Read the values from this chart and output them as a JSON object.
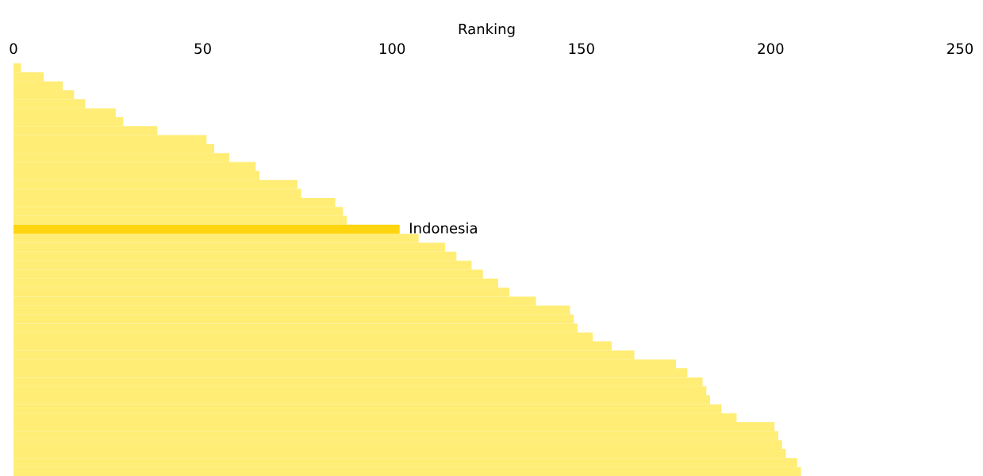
{
  "chart_data": {
    "type": "bar",
    "orientation": "horizontal",
    "xlabel": "Ranking",
    "categories": [
      null,
      null,
      null,
      null,
      null,
      null,
      null,
      null,
      null,
      null,
      null,
      null,
      null,
      null,
      null,
      null,
      null,
      null,
      "Indonesia",
      null,
      null,
      null,
      null,
      null,
      null,
      null,
      null,
      null,
      null,
      null,
      null,
      null,
      null,
      null,
      null,
      null,
      null,
      null,
      null,
      null,
      null,
      null,
      null,
      null,
      null,
      null
    ],
    "values": [
      2,
      8,
      13,
      16,
      19,
      27,
      29,
      38,
      51,
      53,
      57,
      64,
      65,
      75,
      76,
      85,
      87,
      88,
      102,
      107,
      114,
      117,
      121,
      124,
      128,
      131,
      138,
      147,
      148,
      149,
      153,
      158,
      164,
      175,
      178,
      182,
      183,
      184,
      187,
      191,
      201,
      202,
      203,
      204,
      207,
      208
    ],
    "colors": [
      "#ffed75",
      "#ffed75",
      "#ffed75",
      "#ffed75",
      "#ffed75",
      "#ffed75",
      "#ffed75",
      "#ffed75",
      "#ffed75",
      "#ffed75",
      "#ffed75",
      "#ffed75",
      "#ffed75",
      "#ffed75",
      "#ffed75",
      "#ffed75",
      "#ffed75",
      "#ffed75",
      "#ffd50f",
      "#ffed75",
      "#ffed75",
      "#ffed75",
      "#ffed75",
      "#ffed75",
      "#ffed75",
      "#ffed75",
      "#ffed75",
      "#ffed75",
      "#ffed75",
      "#ffed75",
      "#ffed75",
      "#ffed75",
      "#ffed75",
      "#ffed75",
      "#ffed75",
      "#ffed75",
      "#ffed75",
      "#ffed75",
      "#ffed75",
      "#ffed75",
      "#ffed75",
      "#ffed75",
      "#ffed75",
      "#ffed75",
      "#ffed75",
      "#ffed75"
    ],
    "xlim": [
      0,
      250
    ],
    "xticks": [
      0,
      50,
      100,
      150,
      200,
      250
    ],
    "grid": false,
    "legend": false
  }
}
